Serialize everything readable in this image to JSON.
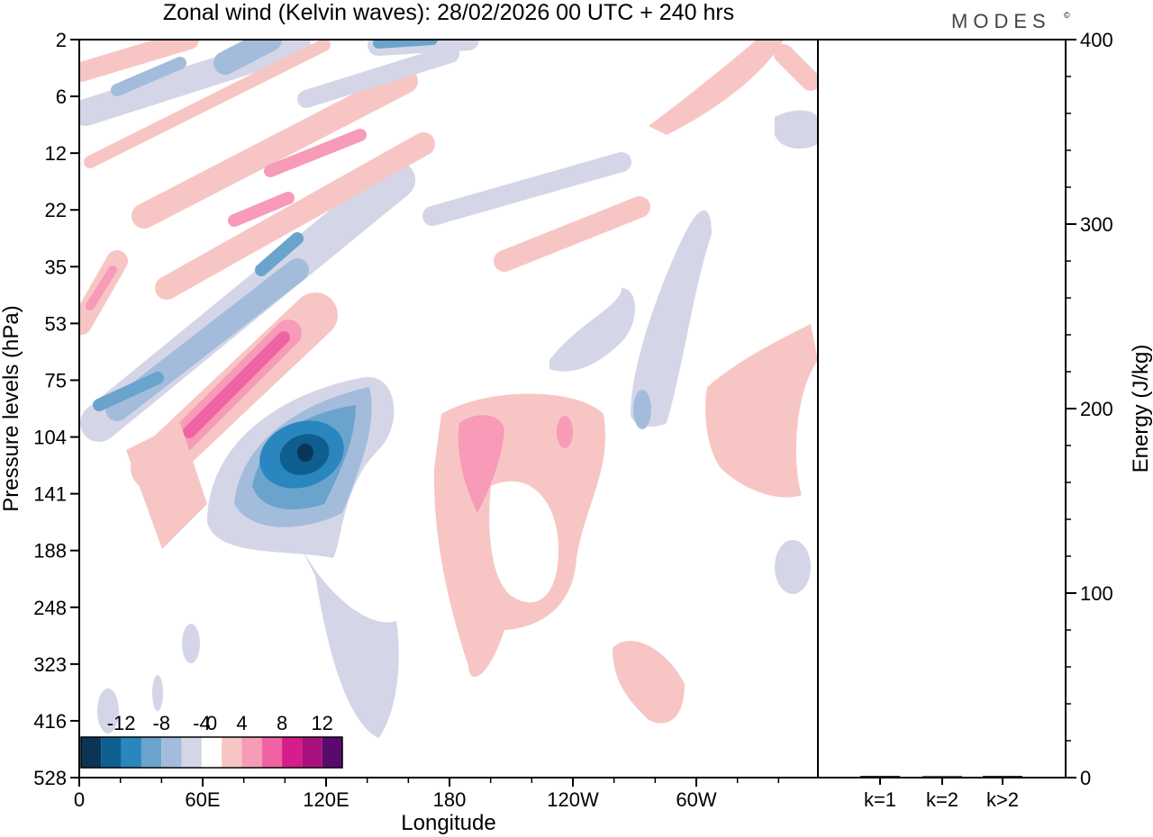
{
  "title": "Zonal wind (Kelvin waves):  28/02/2026  00 UTC  + 240 hrs",
  "brand": "MODES",
  "brand_mark": "©",
  "chart_data": [
    {
      "type": "heatmap",
      "name": "zonal-wind-hovmoller",
      "xlabel": "Longitude",
      "ylabel": "Pressure levels (hPa)",
      "x_ticks": [
        "0",
        "60E",
        "120E",
        "180",
        "120W",
        "60W"
      ],
      "x_range_deg": [
        0,
        360
      ],
      "y_ticks": [
        "2",
        "6",
        "12",
        "22",
        "35",
        "53",
        "75",
        "104",
        "141",
        "188",
        "248",
        "323",
        "416",
        "528"
      ],
      "colorbar": {
        "labels": [
          "-12",
          "-8",
          "-4",
          "0",
          "4",
          "8",
          "12"
        ],
        "levels": [
          -14,
          -12,
          -10,
          -8,
          -6,
          -4,
          -2,
          2,
          4,
          6,
          8,
          10,
          12,
          14
        ],
        "colors": [
          "#0b3556",
          "#0e5f8f",
          "#2a86bf",
          "#6aa4cc",
          "#a3bcdb",
          "#d4d6e7",
          "#ffffff",
          "#f7c6c4",
          "#f79bb8",
          "#ef62a4",
          "#d61d8c",
          "#a8117d",
          "#5a0a6c"
        ]
      },
      "features": [
        {
          "label": "strong easterly core",
          "lon": 110,
          "hpa": 115,
          "value": -13
        },
        {
          "label": "westerly core",
          "lon": 60,
          "hpa": 90,
          "value": 9
        },
        {
          "label": "westerly core upper",
          "lon": 95,
          "hpa": 55,
          "value": 9
        },
        {
          "label": "easterly band",
          "lon": 95,
          "hpa": 30,
          "value": -5
        },
        {
          "label": "easterly band",
          "lon": 20,
          "hpa": 75,
          "value": -5
        },
        {
          "label": "westerly band",
          "lon": 85,
          "hpa": 22,
          "value": 6
        },
        {
          "label": "westerly region",
          "lon": 190,
          "hpa": 140,
          "value": 5
        },
        {
          "label": "westerly region",
          "lon": 320,
          "hpa": 130,
          "value": 2
        }
      ]
    },
    {
      "type": "bar",
      "name": "energy-spectrum",
      "categories": [
        "k=1",
        "k=2",
        "k>2"
      ],
      "values": [
        0.4,
        0.3,
        0.4
      ],
      "ylabel": "Energy (J/kg)",
      "ylim": [
        0,
        400
      ],
      "y_ticks": [
        "0",
        "100",
        "200",
        "300",
        "400"
      ]
    }
  ],
  "colors": {
    "axis": "#000000",
    "text": "#000000",
    "brand": "#444444",
    "bar": "#000000"
  }
}
